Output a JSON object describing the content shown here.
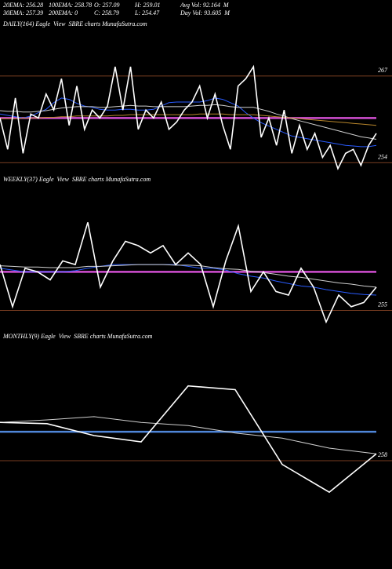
{
  "header": {
    "row1": [
      "20EMA: 256.28",
      "100EMA: 258.78",
      "O: 257.09",
      "H: 259.01",
      "Avg Vol: 92.164  M"
    ],
    "row2": [
      "30EMA: 257.39",
      "200EMA: 0",
      "C: 258.79",
      "L: 254.47",
      "Day Vol: 93.605  M"
    ]
  },
  "chart_data": [
    {
      "type": "line",
      "title": "DAILY(164) Eagle  View  SBRE charts MunafaSutra.com",
      "ylim": [
        252.5,
        273.7
      ],
      "yticks": [
        254,
        267
      ],
      "hline": {
        "value": 260.7,
        "color": "#d24fd2"
      },
      "series": [
        {
          "name": "Price",
          "color": "#ffffff",
          "values": [
            260.7,
            256.0,
            263.7,
            255.4,
            261.3,
            260.7,
            264.3,
            261.9,
            266.6,
            259.6,
            265.5,
            259.0,
            261.9,
            260.7,
            262.5,
            268.4,
            261.9,
            268.4,
            259.0,
            261.9,
            260.7,
            263.1,
            259.0,
            260.1,
            261.9,
            263.1,
            265.5,
            260.7,
            264.3,
            259.6,
            256.0,
            265.5,
            266.6,
            268.4,
            257.8,
            260.7,
            256.6,
            261.9,
            255.4,
            259.6,
            256.0,
            258.4,
            254.8,
            256.6,
            253.1,
            255.4,
            256.0,
            253.6,
            256.6,
            258.4
          ]
        },
        {
          "name": "100EMA",
          "color": "#b8862b",
          "values": [
            260.6,
            260.6,
            260.6,
            260.7,
            260.7,
            260.7,
            260.8,
            260.8,
            260.9,
            260.9,
            261.0,
            261.0,
            261.0,
            261.0,
            261.0,
            261.1,
            261.1,
            261.2,
            261.2,
            261.2,
            261.2,
            261.2,
            261.2,
            261.2,
            261.2,
            261.2,
            261.3,
            261.3,
            261.3,
            261.3,
            261.2,
            261.2,
            261.2,
            261.2,
            261.1,
            261.0,
            260.9,
            260.8,
            260.7,
            260.6,
            260.5,
            260.4,
            260.3,
            260.2,
            260.1,
            260.0,
            259.9,
            259.8,
            259.7,
            259.6
          ]
        },
        {
          "name": "30EMA",
          "color": "#cfcfcf",
          "values": [
            261.8,
            261.7,
            261.7,
            261.6,
            261.6,
            261.7,
            261.8,
            262.0,
            262.2,
            262.3,
            262.4,
            262.4,
            262.4,
            262.3,
            262.3,
            262.4,
            262.5,
            262.6,
            262.5,
            262.5,
            262.4,
            262.4,
            262.4,
            262.4,
            262.4,
            262.5,
            262.6,
            262.6,
            262.7,
            262.6,
            262.4,
            262.3,
            262.3,
            262.3,
            262.0,
            261.7,
            261.3,
            261.0,
            260.6,
            260.3,
            260.0,
            259.7,
            259.4,
            259.1,
            258.8,
            258.5,
            258.2,
            257.9,
            257.7,
            257.5
          ]
        },
        {
          "name": "20EMA",
          "color": "#2a5cff",
          "values": [
            261.3,
            261.1,
            260.9,
            260.7,
            261.0,
            261.5,
            262.0,
            263.0,
            263.7,
            263.5,
            262.9,
            262.5,
            262.3,
            262.0,
            261.9,
            261.9,
            262.0,
            262.0,
            261.9,
            261.9,
            262.0,
            262.5,
            263.0,
            263.1,
            263.1,
            263.1,
            263.1,
            263.3,
            263.7,
            263.5,
            263.0,
            262.5,
            261.5,
            260.7,
            260.0,
            259.5,
            259.0,
            258.5,
            258.0,
            257.8,
            257.6,
            257.4,
            257.2,
            257.0,
            256.8,
            256.6,
            256.5,
            256.4,
            256.4,
            256.6
          ]
        }
      ]
    },
    {
      "type": "line",
      "title": "WEEKLY(37) Eagle  View  SBRE charts MunafaSutra.com",
      "ylim": [
        252.5,
        275.6
      ],
      "yticks": [
        255
      ],
      "hline": {
        "value": 261.3,
        "color": "#d24fd2"
      },
      "series": [
        {
          "name": "Price",
          "color": "#ffffff",
          "values": [
            262.5,
            255.6,
            261.9,
            261.3,
            260.0,
            263.1,
            262.5,
            269.4,
            258.8,
            263.1,
            266.3,
            265.6,
            264.4,
            265.6,
            262.5,
            264.4,
            262.5,
            255.6,
            263.1,
            268.8,
            258.1,
            261.3,
            258.1,
            257.5,
            261.9,
            258.8,
            253.1,
            257.5,
            255.6,
            256.3,
            258.8
          ]
        },
        {
          "name": "30EMA",
          "color": "#cfcfcf",
          "values": [
            262.3,
            262.2,
            262.1,
            262.1,
            262.0,
            262.0,
            262.0,
            262.2,
            262.2,
            262.3,
            262.4,
            262.5,
            262.5,
            262.5,
            262.4,
            262.4,
            262.3,
            262.0,
            261.8,
            261.7,
            261.4,
            261.2,
            260.9,
            260.6,
            260.4,
            260.1,
            259.8,
            259.5,
            259.3,
            259.0,
            258.8
          ]
        },
        {
          "name": "20EMA",
          "color": "#2a5cff",
          "values": [
            261.9,
            261.6,
            261.3,
            261.3,
            261.3,
            261.3,
            261.5,
            261.9,
            262.2,
            262.5,
            262.5,
            262.5,
            262.5,
            262.5,
            262.5,
            262.2,
            261.9,
            261.9,
            261.6,
            261.0,
            260.6,
            260.3,
            259.8,
            259.4,
            259.0,
            258.8,
            258.4,
            258.1,
            257.8,
            257.6,
            257.5
          ]
        }
      ]
    },
    {
      "type": "line",
      "title": "MONTHLY(9) Eagle  View  SBRE charts MunafaSutra.com",
      "ylim": [
        243.9,
        277.6
      ],
      "yticks": [
        258
      ],
      "hline": {
        "value": 262.6,
        "color": "#4f86d9"
      },
      "series": [
        {
          "name": "Price",
          "color": "#ffffff",
          "values": [
            264.1,
            263.9,
            262.0,
            261.0,
            269.9,
            269.3,
            257.4,
            253.0,
            259.1
          ]
        },
        {
          "name": "EMA",
          "color": "#cfcfcf",
          "values": [
            264.1,
            264.5,
            265.0,
            264.1,
            263.6,
            262.4,
            261.6,
            260.0,
            259.1
          ]
        }
      ]
    }
  ]
}
